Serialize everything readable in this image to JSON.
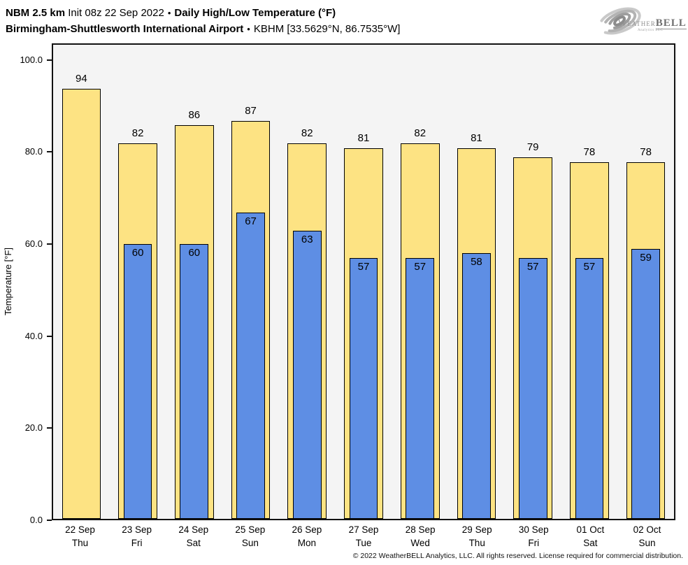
{
  "header": {
    "model": "NBM 2.5 km",
    "init": "Init 08z 22 Sep 2022",
    "bullet": "•",
    "product": "Daily High/Low Temperature (°F)",
    "station": "Birmingham-Shuttlesworth International Airport",
    "station_id": "KBHM [33.5629°N, 86.7535°W]"
  },
  "logo": {
    "brand_weather": "Weather",
    "brand_bell": "BELL",
    "brand_sub": "Analytics LLC"
  },
  "footer": {
    "copyright": "© 2022 WeatherBELL Analytics, LLC. All rights reserved. License required for commercial distribution."
  },
  "chart_data": {
    "type": "bar",
    "title": "NBM 2.5 km Init 08z 22 Sep 2022 • Daily High/Low Temperature (°F)",
    "subtitle": "Birmingham-Shuttlesworth International Airport • KBHM [33.5629°N, 86.7535°W]",
    "ylabel": "Temperature [°F]",
    "yticks": [
      "0.0",
      "20.0",
      "40.0",
      "60.0",
      "80.0",
      "100.0"
    ],
    "ylim": [
      0,
      103.6
    ],
    "grid": false,
    "plot_bg": "#f4f4f4",
    "legend_position": "none",
    "categories": [
      {
        "date": "22 Sep",
        "day": "Thu"
      },
      {
        "date": "23 Sep",
        "day": "Fri"
      },
      {
        "date": "24 Sep",
        "day": "Sat"
      },
      {
        "date": "25 Sep",
        "day": "Sun"
      },
      {
        "date": "26 Sep",
        "day": "Mon"
      },
      {
        "date": "27 Sep",
        "day": "Tue"
      },
      {
        "date": "28 Sep",
        "day": "Wed"
      },
      {
        "date": "29 Sep",
        "day": "Thu"
      },
      {
        "date": "30 Sep",
        "day": "Fri"
      },
      {
        "date": "01 Oct",
        "day": "Sat"
      },
      {
        "date": "02 Oct",
        "day": "Sun"
      }
    ],
    "series": [
      {
        "name": "Daily High",
        "color": "#FDE383",
        "values": [
          94,
          82,
          86,
          87,
          82,
          81,
          82,
          81,
          79,
          78,
          78
        ]
      },
      {
        "name": "Daily Low",
        "color": "#5E8EE4",
        "values": [
          null,
          60,
          60,
          67,
          63,
          57,
          57,
          58,
          57,
          57,
          59
        ]
      }
    ]
  }
}
